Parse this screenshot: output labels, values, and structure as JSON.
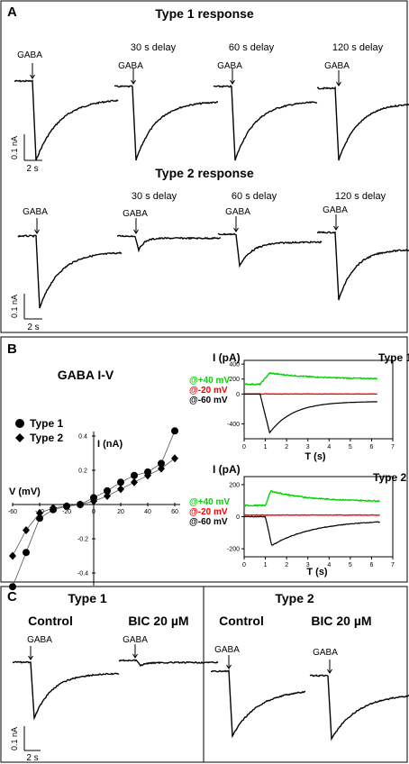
{
  "panel_a": {
    "label": "A",
    "row1_title": "Type 1 response",
    "row2_title": "Type 2 response",
    "stimulus": "GABA",
    "delays": [
      "30 s delay",
      "60 s delay",
      "120 s delay"
    ],
    "scale_y": "0.1 nA",
    "scale_x": "2 s"
  },
  "panel_b": {
    "label": "B",
    "title": "GABA I-V",
    "iv_chart": {
      "type": "scatter",
      "xlabel": "V (mV)",
      "ylabel": "I (nA)",
      "xlim": [
        -60,
        60
      ],
      "ylim": [
        -0.5,
        0.45
      ],
      "x_ticks": [
        "-60",
        "-40",
        "-20",
        "0",
        "20",
        "40",
        "60"
      ],
      "y_ticks": [
        "0.4",
        "0.2",
        "-0.2",
        "-0.4"
      ],
      "legend": [
        "Type 1",
        "Type 2"
      ],
      "series": [
        {
          "name": "Type 1",
          "marker": "circle",
          "x": [
            -60,
            -50,
            -40,
            -30,
            -20,
            -10,
            0,
            10,
            20,
            30,
            40,
            50,
            60
          ],
          "y": [
            -0.48,
            -0.28,
            -0.08,
            -0.03,
            -0.01,
            0.0,
            0.04,
            0.08,
            0.13,
            0.17,
            0.19,
            0.24,
            0.43
          ]
        },
        {
          "name": "Type 2",
          "marker": "diamond",
          "x": [
            -60,
            -50,
            -40,
            -30,
            -20,
            -10,
            0,
            10,
            20,
            30,
            40,
            50,
            60
          ],
          "y": [
            -0.3,
            -0.15,
            -0.05,
            -0.02,
            -0.01,
            0.0,
            0.02,
            0.05,
            0.09,
            0.13,
            0.17,
            0.21,
            0.27
          ]
        }
      ]
    },
    "trace1": {
      "type": "line",
      "title": "Type 1",
      "ylabel": "I (pA)",
      "xlabel": "T (s)",
      "xlim": [
        0,
        7
      ],
      "ylim": [
        -600,
        450
      ],
      "x_ticks": [
        "0",
        "1",
        "2",
        "3",
        "4",
        "5",
        "6",
        "7"
      ],
      "y_ticks": [
        "400",
        "200",
        "0",
        "-400"
      ],
      "legend": [
        "@+40 mV",
        "@-20 mV",
        "@-60 mV"
      ],
      "colors": [
        "#00d400",
        "#ff0000",
        "#000000"
      ]
    },
    "trace2": {
      "type": "line",
      "title": "Type 2",
      "ylabel": "I (pA)",
      "xlabel": "T (s)",
      "xlim": [
        0,
        7
      ],
      "ylim": [
        -250,
        250
      ],
      "x_ticks": [
        "0",
        "1",
        "2",
        "3",
        "4",
        "5",
        "6",
        "7"
      ],
      "y_ticks": [
        "200",
        "0",
        "-200"
      ],
      "legend": [
        "@+40 mV",
        "@-20 mV",
        "@-60 mV"
      ],
      "colors": [
        "#00d400",
        "#ff0000",
        "#000000"
      ]
    }
  },
  "panel_c": {
    "label": "C",
    "type1": "Type 1",
    "type2": "Type 2",
    "control": "Control",
    "bic": "BIC 20 µM",
    "stimulus": "GABA",
    "scale_y": "0.1 nA",
    "scale_x": "2 s"
  }
}
